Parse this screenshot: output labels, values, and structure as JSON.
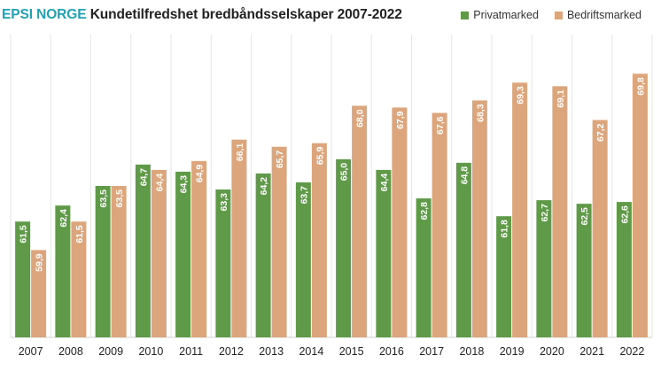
{
  "header": {
    "brand": "EPSI NORGE",
    "title": "Kundetilfredshet bredbåndsselskaper 2007-2022"
  },
  "colors": {
    "privat": "#5f9a48",
    "bedrift": "#dca57b",
    "grid": "#e6e6e6",
    "axis": "#d0d0d0"
  },
  "chart_data": {
    "type": "bar",
    "title": "EPSI NORGE Kundetilfredshet bredbåndsselskaper 2007-2022",
    "xlabel": "",
    "ylabel": "",
    "ylim": [
      55,
      72
    ],
    "grid": "vertical",
    "legend_position": "top-right",
    "categories": [
      "2007",
      "2008",
      "2009",
      "2010",
      "2011",
      "2012",
      "2013",
      "2014",
      "2015",
      "2016",
      "2017",
      "2018",
      "2019",
      "2020",
      "2021",
      "2022"
    ],
    "series": [
      {
        "name": "Privatmarked",
        "values": [
          61.5,
          62.4,
          63.5,
          64.7,
          64.3,
          63.3,
          64.2,
          63.7,
          65.0,
          64.4,
          62.8,
          64.8,
          61.8,
          62.7,
          62.5,
          62.6
        ],
        "labels": [
          "61,5",
          "62,4",
          "63,5",
          "64,7",
          "64,3",
          "63,3",
          "64,2",
          "63,7",
          "65,0",
          "64,4",
          "62,8",
          "64,8",
          "61,8",
          "62,7",
          "62,5",
          "62,6"
        ]
      },
      {
        "name": "Bedriftsmarked",
        "values": [
          59.9,
          61.5,
          63.5,
          64.4,
          64.9,
          66.1,
          65.7,
          65.9,
          68.0,
          67.9,
          67.6,
          68.3,
          69.3,
          69.1,
          67.2,
          69.8
        ],
        "labels": [
          "59,9",
          "61,5",
          "63,5",
          "64,4",
          "64,9",
          "66,1",
          "65,7",
          "65,9",
          "68,0",
          "67,9",
          "67,6",
          "68,3",
          "69,3",
          "69,1",
          "67,2",
          "69,8"
        ]
      }
    ]
  }
}
